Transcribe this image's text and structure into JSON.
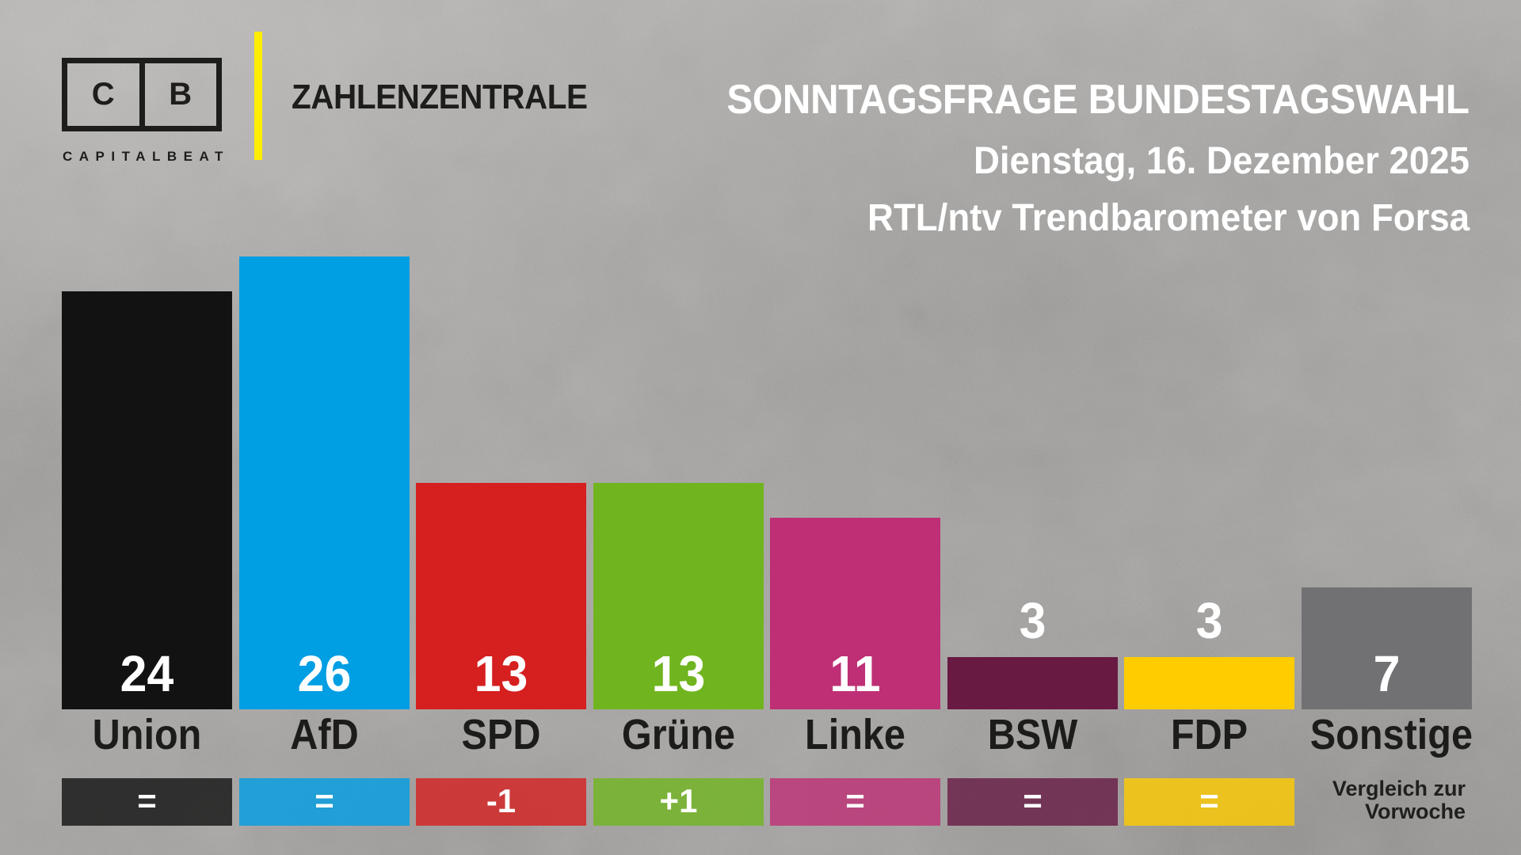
{
  "brand": {
    "logo_left": "C",
    "logo_right": "B",
    "wordmark": "CAPITALBEAT",
    "show_title": "ZAHLENZENTRALE"
  },
  "header": {
    "title": "SONNTAGSFRAGE BUNDESTAGSWAHL",
    "date_line": "Dienstag, 16. Dezember 2025",
    "source_line": "RTL/ntv Trendbarometer von Forsa"
  },
  "chart_data": {
    "type": "bar",
    "title": "SONNTAGSFRAGE BUNDESTAGSWAHL",
    "subtitle": "Dienstag, 16. Dezember 2025 — RTL/ntv Trendbarometer von Forsa",
    "categories": [
      "Union",
      "AfD",
      "SPD",
      "Grüne",
      "Linke",
      "BSW",
      "FDP",
      "Sonstige"
    ],
    "values": [
      24,
      26,
      13,
      13,
      11,
      3,
      3,
      7
    ],
    "changes": [
      "=",
      "=",
      "-1",
      "+1",
      "=",
      "=",
      "=",
      null
    ],
    "bar_colors": [
      "#121212",
      "#009ee3",
      "#d61f1f",
      "#70b51f",
      "#be2f76",
      "#681a43",
      "#ffcc00",
      "#717173"
    ],
    "value_label_color": "#ffffff",
    "category_label_color": "#1c1c1a",
    "ylim": [
      0,
      28
    ],
    "grid": false,
    "legend": false,
    "xlabel": "",
    "ylabel": "",
    "footnote_lines": [
      "Vergleich zur",
      "Vorwoche"
    ]
  },
  "colors": {
    "accent_yellow": "#ffed00",
    "background_gray": "#aaa8a6",
    "title_text": "#ffffff",
    "ink": "#1d1d1b"
  }
}
